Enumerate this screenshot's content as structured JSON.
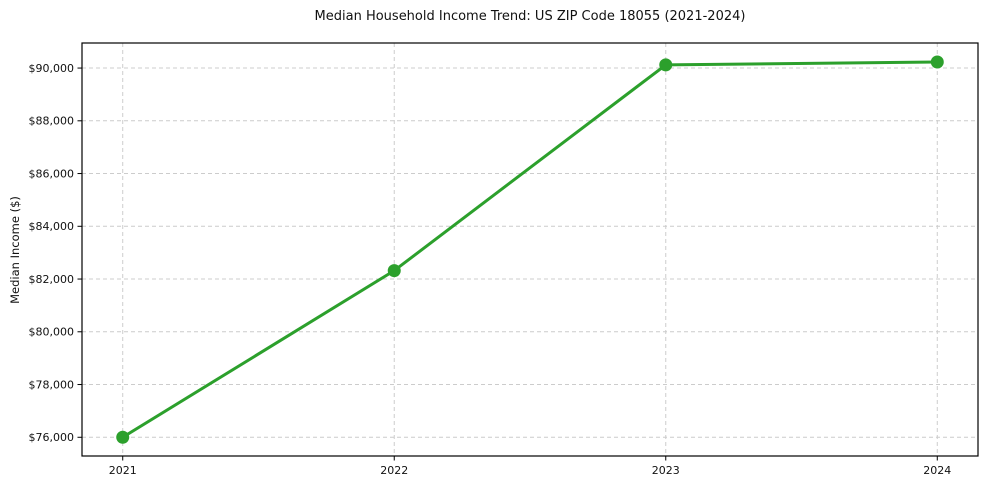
{
  "chart_data": {
    "type": "line",
    "title": "Median Household Income Trend: US ZIP Code 18055 (2021-2024)",
    "xlabel": "",
    "ylabel": "Median Income ($)",
    "categories": [
      2021,
      2022,
      2023,
      2024
    ],
    "x_tick_labels": [
      "2021",
      "2022",
      "2023",
      "2024"
    ],
    "series": [
      {
        "name": "Median Household Income",
        "values": [
          76000,
          82320,
          90120,
          90230
        ]
      }
    ],
    "yticks": [
      76000,
      78000,
      80000,
      82000,
      84000,
      86000,
      88000,
      90000
    ],
    "ytick_labels": [
      "$76,000",
      "$78,000",
      "$80,000",
      "$82,000",
      "$84,000",
      "$86,000",
      "$88,000",
      "$90,000"
    ],
    "ylim": [
      75290,
      90950
    ],
    "xlim": [
      2020.85,
      2024.15
    ],
    "grid": true,
    "grid_style": "dashed",
    "legend": false,
    "line_color": "#2ca02c",
    "marker": "circle",
    "marker_color": "#2ca02c",
    "grid_color": "#cccccc",
    "axis_color": "#000000",
    "background_color": "#ffffff"
  }
}
